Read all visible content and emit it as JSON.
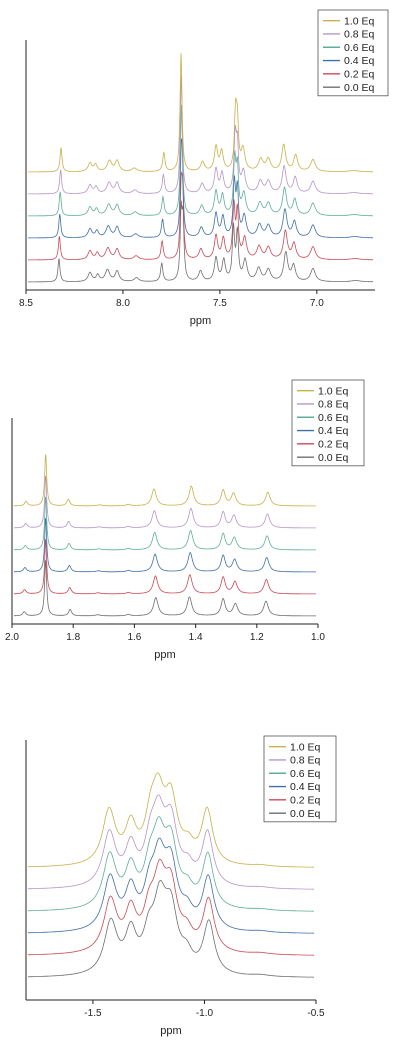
{
  "chart_data": [
    {
      "type": "line",
      "xlabel": "ppm",
      "x_reversed": true,
      "xlim": [
        8.5,
        6.7
      ],
      "xticks": [
        "8.5",
        "8.0",
        "7.5",
        "7.0"
      ],
      "xtick_values": [
        8.5,
        8.0,
        7.5,
        7.0
      ],
      "legend_position": "top-right",
      "y_offset_step": 22,
      "peaks": [
        [
          8.33,
          0.9,
          0.006
        ],
        [
          8.17,
          0.35,
          0.012
        ],
        [
          8.13,
          0.25,
          0.01
        ],
        [
          8.08,
          0.45,
          0.014
        ],
        [
          8.03,
          0.4,
          0.012
        ],
        [
          7.93,
          0.15,
          0.015
        ],
        [
          7.8,
          0.7,
          0.007
        ],
        [
          7.7,
          2.5,
          0.006
        ],
        [
          7.69,
          2.2,
          0.006
        ],
        [
          7.6,
          0.4,
          0.012
        ],
        [
          7.52,
          0.9,
          0.01
        ],
        [
          7.48,
          0.8,
          0.01
        ],
        [
          7.43,
          2.0,
          0.007
        ],
        [
          7.41,
          1.8,
          0.007
        ],
        [
          7.37,
          0.8,
          0.012
        ],
        [
          7.3,
          0.5,
          0.014
        ],
        [
          7.25,
          0.45,
          0.014
        ],
        [
          7.16,
          1.1,
          0.012
        ],
        [
          7.12,
          0.6,
          0.012
        ],
        [
          7.02,
          0.5,
          0.015
        ],
        [
          6.8,
          0.05,
          0.03
        ]
      ],
      "series": [
        {
          "name": "1.0 Eq",
          "color": "#c9b04a"
        },
        {
          "name": "0.8 Eq",
          "color": "#b794c8"
        },
        {
          "name": "0.6 Eq",
          "color": "#5fae98"
        },
        {
          "name": "0.4 Eq",
          "color": "#3f6fa8"
        },
        {
          "name": "0.2 Eq",
          "color": "#c94a56"
        },
        {
          "name": "0.0 Eq",
          "color": "#6e6e6e"
        }
      ]
    },
    {
      "type": "line",
      "xlabel": "ppm",
      "x_reversed": true,
      "xlim": [
        2.0,
        1.0
      ],
      "xticks": [
        "2.0",
        "1.8",
        "1.6",
        "1.4",
        "1.2",
        "1.0"
      ],
      "xtick_values": [
        2.0,
        1.8,
        1.6,
        1.4,
        1.2,
        1.0
      ],
      "legend_position": "top-right",
      "y_offset_step": 22,
      "peaks": [
        [
          1.96,
          0.3,
          0.006
        ],
        [
          1.89,
          4.0,
          0.004
        ],
        [
          1.81,
          0.45,
          0.006
        ],
        [
          1.72,
          0.08,
          0.01
        ],
        [
          1.62,
          0.1,
          0.008
        ],
        [
          1.53,
          1.3,
          0.009
        ],
        [
          1.42,
          1.35,
          0.009
        ],
        [
          1.31,
          1.2,
          0.008
        ],
        [
          1.27,
          0.85,
          0.009
        ],
        [
          1.17,
          1.05,
          0.009
        ]
      ],
      "series": [
        {
          "name": "1.0 Eq",
          "color": "#c9b04a"
        },
        {
          "name": "0.8 Eq",
          "color": "#b794c8"
        },
        {
          "name": "0.6 Eq",
          "color": "#5fae98"
        },
        {
          "name": "0.4 Eq",
          "color": "#3f6fa8"
        },
        {
          "name": "0.2 Eq",
          "color": "#c94a56"
        },
        {
          "name": "0.0 Eq",
          "color": "#6e6e6e"
        }
      ]
    },
    {
      "type": "line",
      "xlabel": "ppm",
      "x_reversed": false,
      "xlim": [
        -1.8,
        -0.5
      ],
      "xticks": [
        "-1.5",
        "-1.0",
        "-0.5"
      ],
      "xtick_values": [
        -1.5,
        -1.0,
        -0.5
      ],
      "legend_position": "top-right",
      "y_offset_step": 22,
      "peaks": [
        [
          -1.42,
          1.0,
          0.035
        ],
        [
          -1.33,
          0.75,
          0.03
        ],
        [
          -1.25,
          0.6,
          0.03
        ],
        [
          -1.2,
          1.25,
          0.035
        ],
        [
          -1.15,
          1.1,
          0.035
        ],
        [
          -1.08,
          0.3,
          0.03
        ],
        [
          -0.98,
          1.0,
          0.03
        ],
        [
          -0.75,
          0.03,
          0.05
        ]
      ],
      "series": [
        {
          "name": "1.0 Eq",
          "color": "#c9b04a"
        },
        {
          "name": "0.8 Eq",
          "color": "#b794c8"
        },
        {
          "name": "0.6 Eq",
          "color": "#5fae98"
        },
        {
          "name": "0.4 Eq",
          "color": "#3f6fa8"
        },
        {
          "name": "0.2 Eq",
          "color": "#c94a56"
        },
        {
          "name": "0.0 Eq",
          "color": "#6e6e6e"
        }
      ]
    }
  ]
}
